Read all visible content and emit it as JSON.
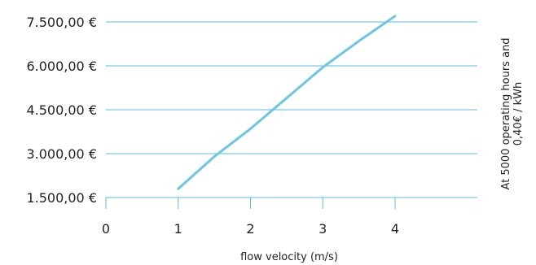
{
  "chart_data": {
    "type": "line",
    "title": "",
    "xlabel": "flow velocity (m/s)",
    "ylabel": "",
    "xlim": [
      0,
      5
    ],
    "ylim": [
      1500,
      7500
    ],
    "x_ticks": [
      "0",
      "1",
      "2",
      "3",
      "4"
    ],
    "y_ticks": [
      "1.500,00 €",
      "3.000,00 €",
      "4.500,00 €",
      "6.000,00 €",
      "7.500,00 €"
    ],
    "annotation": [
      "At 5000 operating hours and",
      "0,40€ / kWh"
    ],
    "grid": "horizontal",
    "line_color": "#6cc6e3",
    "grid_color": "#5bbcdd",
    "series": [
      {
        "x": [
          1,
          1.5,
          2,
          2.5,
          3,
          3.5,
          4
        ],
        "y": [
          1800,
          2900,
          3850,
          4900,
          5950,
          6850,
          7700
        ]
      }
    ]
  }
}
